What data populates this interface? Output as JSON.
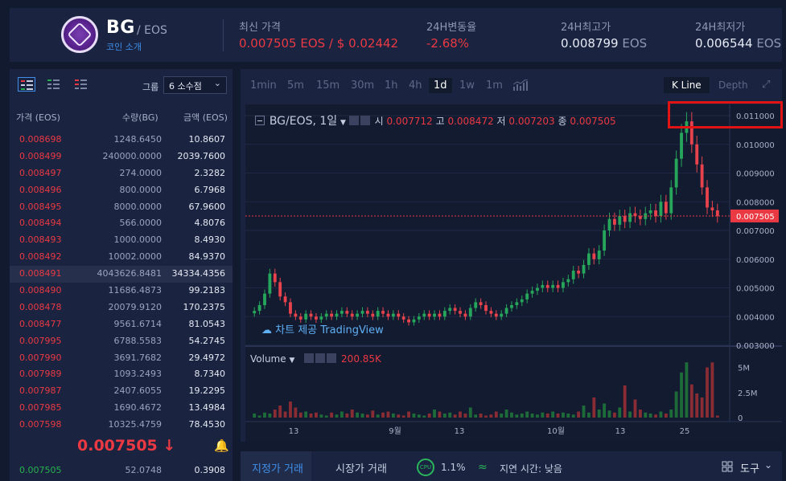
{
  "header": {
    "coin_name": "BG",
    "pair": "/ EOS",
    "intro_link": "코인 소개",
    "stats": [
      {
        "label": "최신 가격",
        "value": "0.007505",
        "unit": "EOS / $ 0.02442"
      },
      {
        "label": "24H변동율",
        "value": "-2.68%"
      },
      {
        "label": "24H최고가",
        "value": "0.008799",
        "unit": "EOS"
      },
      {
        "label": "24H최저가",
        "value": "0.006544",
        "unit": "EOS"
      }
    ]
  },
  "orderbook": {
    "group_label": "그룹",
    "group_value": "6 소수점",
    "columns": [
      "가격 (EOS)",
      "수량(BG)",
      "금액 (EOS)"
    ],
    "asks": [
      {
        "price": "0.008698",
        "qty": "1248.6450",
        "amount": "10.8607"
      },
      {
        "price": "0.008499",
        "qty": "240000.0000",
        "amount": "2039.7600"
      },
      {
        "price": "0.008497",
        "qty": "274.0000",
        "amount": "2.3282"
      },
      {
        "price": "0.008496",
        "qty": "800.0000",
        "amount": "6.7968"
      },
      {
        "price": "0.008495",
        "qty": "8000.0000",
        "amount": "67.9600"
      },
      {
        "price": "0.008494",
        "qty": "566.0000",
        "amount": "4.8076"
      },
      {
        "price": "0.008493",
        "qty": "1000.0000",
        "amount": "8.4930"
      },
      {
        "price": "0.008492",
        "qty": "10002.0000",
        "amount": "84.9370"
      },
      {
        "price": "0.008491",
        "qty": "4043626.8481",
        "amount": "34334.4356"
      },
      {
        "price": "0.008490",
        "qty": "11686.4873",
        "amount": "99.2183"
      },
      {
        "price": "0.008478",
        "qty": "20079.9120",
        "amount": "170.2375"
      },
      {
        "price": "0.008477",
        "qty": "9561.6714",
        "amount": "81.0543"
      },
      {
        "price": "0.007995",
        "qty": "6788.5583",
        "amount": "54.2745"
      },
      {
        "price": "0.007990",
        "qty": "3691.7682",
        "amount": "29.4972"
      },
      {
        "price": "0.007989",
        "qty": "1093.2493",
        "amount": "8.7340"
      },
      {
        "price": "0.007987",
        "qty": "2407.6055",
        "amount": "19.2295"
      },
      {
        "price": "0.007985",
        "qty": "1690.4672",
        "amount": "13.4984"
      },
      {
        "price": "0.007598",
        "qty": "10325.4759",
        "amount": "78.4530"
      }
    ],
    "last_price": "0.007505 ↓",
    "bids": [
      {
        "price": "0.007505",
        "qty": "52.0748",
        "amount": "0.3908"
      }
    ]
  },
  "chart": {
    "timeframes": [
      "1min",
      "5m",
      "15m",
      "30m",
      "1h",
      "4h",
      "1d",
      "1w",
      "1m"
    ],
    "active_timeframe": "1d",
    "tabs": [
      "K Line",
      "Depth"
    ],
    "symbol": "BG/EOS, 1일",
    "ohlc_labels": {
      "o": "시",
      "h": "고",
      "l": "저",
      "c": "종"
    },
    "ohlc": {
      "o": "0.007712",
      "h": "0.008472",
      "l": "0.007203",
      "c": "0.007505"
    },
    "price_axis": [
      "0.011000",
      "0.010000",
      "0.009000",
      "0.008000",
      "0.007000",
      "0.006000",
      "0.005000",
      "0.004000",
      "0.003000"
    ],
    "current_price_tag": "0.007505",
    "volume_label": "Volume",
    "volume_value": "200.85K",
    "volume_axis": [
      "5M",
      "2.5M",
      "0"
    ],
    "date_axis": [
      "13",
      "9월",
      "13",
      "10월",
      "13",
      "25"
    ],
    "brand": "차트 제공 TradingView",
    "up_color": "#26a65b",
    "down_color": "#e8434d"
  },
  "bottombar": {
    "tab_limit": "지정가 거래",
    "tab_market": "시장가 거래",
    "cpu_label": "CPU",
    "cpu_value": "1.1%",
    "latency": "지연 시간: 낮음",
    "tools": "도구"
  },
  "chart_data": {
    "type": "candlestick",
    "title": "BG/EOS, 1일",
    "ylim": [
      0.003,
      0.011
    ],
    "x_ticks": [
      "13",
      "9월",
      "13",
      "10월",
      "13",
      "25"
    ],
    "last": {
      "o": 0.007712,
      "h": 0.008472,
      "l": 0.007203,
      "c": 0.007505
    },
    "close": [
      0.0042,
      0.0044,
      0.0048,
      0.0055,
      0.0052,
      0.0047,
      0.0045,
      0.0041,
      0.004,
      0.0039,
      0.0041,
      0.004,
      0.0039,
      0.004,
      0.0041,
      0.004,
      0.0041,
      0.0042,
      0.0041,
      0.004,
      0.0041,
      0.0042,
      0.0041,
      0.004,
      0.0042,
      0.0041,
      0.004,
      0.0041,
      0.004,
      0.0039,
      0.0038,
      0.0039,
      0.004,
      0.0041,
      0.004,
      0.0041,
      0.004,
      0.0042,
      0.0043,
      0.0042,
      0.0041,
      0.004,
      0.0043,
      0.0045,
      0.0044,
      0.0042,
      0.0041,
      0.004,
      0.0041,
      0.0043,
      0.0044,
      0.0045,
      0.0046,
      0.0048,
      0.0049,
      0.005,
      0.0051,
      0.005,
      0.0051,
      0.005,
      0.0052,
      0.0053,
      0.0056,
      0.0055,
      0.0058,
      0.0062,
      0.006,
      0.0063,
      0.007,
      0.0074,
      0.0072,
      0.0075,
      0.0073,
      0.0076,
      0.0075,
      0.0074,
      0.0076,
      0.0077,
      0.0075,
      0.008,
      0.0076,
      0.0085,
      0.0095,
      0.0104,
      0.0108,
      0.01,
      0.0093,
      0.0085,
      0.0078,
      0.0077,
      0.0075
    ],
    "volume_scale": "M",
    "volume": [
      0.4,
      0.2,
      0.5,
      0.4,
      0.8,
      1.2,
      0.6,
      1.6,
      1.0,
      0.5,
      0.6,
      0.4,
      0.5,
      0.3,
      0.2,
      0.5,
      0.3,
      0.6,
      0.4,
      0.8,
      0.5,
      0.4,
      0.3,
      0.7,
      0.3,
      0.5,
      0.6,
      0.4,
      0.3,
      0.2,
      0.6,
      0.4,
      0.3,
      0.2,
      0.4,
      0.8,
      0.6,
      0.4,
      0.5,
      0.3,
      0.6,
      0.4,
      1.0,
      0.3,
      0.4,
      0.2,
      0.3,
      0.6,
      0.4,
      0.8,
      0.5,
      0.3,
      0.4,
      0.6,
      0.4,
      0.3,
      0.5,
      0.4,
      0.6,
      0.4,
      0.5,
      0.4,
      0.3,
      0.6,
      1.2,
      0.5,
      2.0,
      0.8,
      1.4,
      0.7,
      0.5,
      1.0,
      3.2,
      0.6,
      1.8,
      0.8,
      0.5,
      0.4,
      0.3,
      0.6,
      0.4,
      0.8,
      2.6,
      4.5,
      5.5,
      3.3,
      2.4,
      2.0,
      5.0,
      5.5,
      0.2
    ]
  }
}
